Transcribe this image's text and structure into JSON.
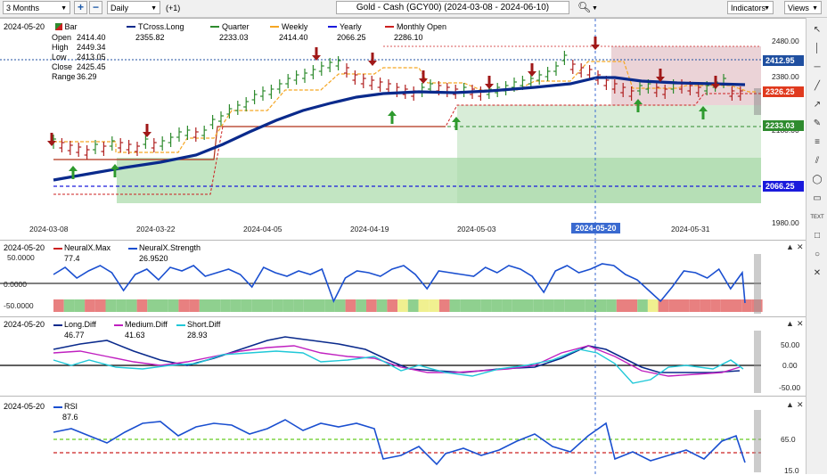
{
  "toolbar": {
    "period": "3 Months",
    "zoom_in": "+",
    "zoom_out": "−",
    "interval": "Daily",
    "offset": "(+1)",
    "title": "Gold - Cash (GCY00) (2024-03-08 - 2024-06-10)",
    "indicators": "Indicators",
    "views": "Views"
  },
  "main_panel": {
    "date": "2024-05-20",
    "bar_label": "Bar",
    "ohlc": [
      {
        "label": "Open",
        "value": "2414.40"
      },
      {
        "label": "High",
        "value": "2449.34"
      },
      {
        "label": "Low",
        "value": "2413.05"
      },
      {
        "label": "Close",
        "value": "2425.45"
      },
      {
        "label": "Range",
        "value": "36.29"
      }
    ],
    "legend": [
      {
        "name": "TCross.Long",
        "value": "2355.82",
        "color": "#0a2a8c"
      },
      {
        "name": "Quarter",
        "value": "2233.03",
        "color": "#2e8b2e"
      },
      {
        "name": "Weekly",
        "value": "2414.40",
        "color": "#f5a623"
      },
      {
        "name": "Yearly",
        "value": "2066.25",
        "color": "#1a1adc"
      },
      {
        "name": "Monthly Open",
        "value": "2286.10",
        "color": "#cc2020"
      }
    ],
    "y_ticks": [
      "2480.00",
      "2380.00",
      "2180.00",
      "1980.00"
    ],
    "price_tags": [
      {
        "text": "2412.95",
        "color": "#1f4fa0"
      },
      {
        "text": "2326.25",
        "color": "#e03a1e"
      },
      {
        "text": "2233.03",
        "color": "#2e8b2e"
      },
      {
        "text": "2066.25",
        "color": "#1a1adc"
      }
    ],
    "x_ticks": [
      "2024-03-08",
      "2024-03-22",
      "2024-04-05",
      "2024-04-19",
      "2024-05-03",
      "2024-05-31"
    ],
    "cursor_date": "2024-05-20"
  },
  "neural_panel": {
    "date": "2024-05-20",
    "legend": [
      {
        "name": "NeuralX.Max",
        "value": "77.4"
      },
      {
        "name": "NeuralX.Strength",
        "value": "26.9520"
      }
    ],
    "y_ticks": [
      "50.0000",
      "0.0000",
      "-50.0000"
    ]
  },
  "diff_panel": {
    "date": "2024-05-20",
    "legend": [
      {
        "name": "Long.Diff",
        "value": "46.77",
        "color": "#0a2a8c"
      },
      {
        "name": "Medium.Diff",
        "value": "41.63",
        "color": "#c020c0"
      },
      {
        "name": "Short.Diff",
        "value": "28.93",
        "color": "#20c8d8"
      }
    ],
    "y_ticks": [
      "50.00",
      "0.00",
      "-50.00"
    ]
  },
  "rsi_panel": {
    "date": "2024-05-20",
    "legend": [
      {
        "name": "RSI",
        "value": "87.6"
      }
    ],
    "y_ticks": [
      "65.0",
      "15.0"
    ]
  },
  "panel_controls": {
    "minimize": "▲",
    "close": "✕"
  },
  "sidebar_tools": [
    "arrow",
    "vertical-line",
    "horizontal-line",
    "trend-line",
    "ray",
    "pen",
    "fibonacci",
    "channel",
    "ellipse",
    "callout",
    "text",
    "rectangle",
    "circle",
    "delete"
  ]
}
